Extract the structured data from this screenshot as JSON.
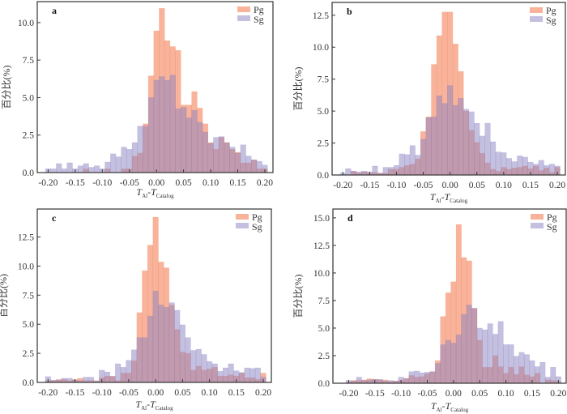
{
  "colors": {
    "pg": "#f4845c",
    "sg": "#8a82c2",
    "axis": "#333333"
  },
  "chart_data": [
    {
      "type": "bar",
      "panel_label": "a",
      "xlabel": "T_Al - T_Catalog",
      "xlabel_parts": {
        "t1": "T",
        "s1": "Al",
        "dash": "-",
        "t2": "T",
        "s2": "Catalog"
      },
      "ylabel": "百分比(%)",
      "xlim": [
        -0.22,
        0.215
      ],
      "ylim": [
        0,
        11.4
      ],
      "xticks": [
        -0.2,
        -0.15,
        -0.1,
        -0.05,
        0.0,
        0.05,
        0.1,
        0.15,
        0.2
      ],
      "xtick_labels": [
        "-0.20",
        "-0.15",
        "-0.10",
        "-0.05",
        "0.00",
        "0.05",
        "0.10",
        "0.15",
        "0.20"
      ],
      "yticks": [
        0,
        2.5,
        5.0,
        7.5,
        10.0
      ],
      "ytick_labels": [
        "0.0",
        "2.5",
        "5.0",
        "7.5",
        "10.0"
      ],
      "legend": {
        "position": "top-right",
        "entries": [
          "Pg",
          "Sg"
        ]
      },
      "bin_width": 0.01,
      "x": [
        -0.2,
        -0.19,
        -0.18,
        -0.17,
        -0.16,
        -0.15,
        -0.14,
        -0.13,
        -0.12,
        -0.11,
        -0.1,
        -0.09,
        -0.08,
        -0.07,
        -0.06,
        -0.05,
        -0.04,
        -0.03,
        -0.02,
        -0.01,
        0.0,
        0.01,
        0.02,
        0.03,
        0.04,
        0.05,
        0.06,
        0.07,
        0.08,
        0.09,
        0.1,
        0.11,
        0.12,
        0.13,
        0.14,
        0.15,
        0.16,
        0.17,
        0.18,
        0.19,
        0.2
      ],
      "series": [
        {
          "name": "Pg",
          "values": [
            0,
            0,
            0,
            0,
            0,
            0,
            0,
            0.25,
            0,
            0,
            0,
            0.25,
            0,
            0,
            0.25,
            0.25,
            1.1,
            1.3,
            3.25,
            6.45,
            9.45,
            10.95,
            8.8,
            8.4,
            8.15,
            4.5,
            4.5,
            5.4,
            4.3,
            3.25,
            2.0,
            1.55,
            2.35,
            2.0,
            1.55,
            1.35,
            0.65,
            0.65,
            0.85,
            0.25,
            0.25
          ]
        },
        {
          "name": "Sg",
          "values": [
            0.25,
            0.25,
            0.6,
            0.25,
            0.65,
            0.25,
            0.45,
            0.6,
            0.35,
            0.45,
            0.25,
            0.7,
            1.25,
            1.05,
            1.7,
            1.55,
            2.0,
            3.1,
            3.1,
            5.0,
            6.15,
            6.4,
            6.15,
            6.5,
            4.25,
            4.35,
            3.65,
            4.15,
            3.35,
            2.7,
            1.95,
            2.35,
            2.4,
            2.0,
            1.7,
            1.3,
            1.85,
            1.1,
            0.85,
            0.75,
            0.5
          ]
        }
      ]
    },
    {
      "type": "bar",
      "panel_label": "b",
      "xlabel": "T_Al - T_Catalog",
      "xlabel_parts": {
        "t1": "T",
        "s1": "Al",
        "dash": "-",
        "t2": "T",
        "s2": "Catalog"
      },
      "ylabel": "百分比(%)",
      "xlim": [
        -0.22,
        0.215
      ],
      "ylim": [
        0,
        13.5
      ],
      "xticks": [
        -0.2,
        -0.15,
        -0.1,
        -0.05,
        0.0,
        0.05,
        0.1,
        0.15,
        0.2
      ],
      "xtick_labels": [
        "-0.20",
        "-0.15",
        "-0.10",
        "-0.05",
        "0.00",
        "0.05",
        "0.10",
        "0.15",
        "0.20"
      ],
      "yticks": [
        0,
        2.5,
        5.0,
        7.5,
        10.0,
        12.5
      ],
      "ytick_labels": [
        "0.0",
        "2.5",
        "5.0",
        "7.5",
        "10.0",
        "12.5"
      ],
      "legend": {
        "position": "top-right",
        "entries": [
          "Pg",
          "Sg"
        ]
      },
      "bin_width": 0.01,
      "x": [
        -0.2,
        -0.19,
        -0.18,
        -0.17,
        -0.16,
        -0.15,
        -0.14,
        -0.13,
        -0.12,
        -0.11,
        -0.1,
        -0.09,
        -0.08,
        -0.07,
        -0.06,
        -0.05,
        -0.04,
        -0.03,
        -0.02,
        -0.01,
        0.0,
        0.01,
        0.02,
        0.03,
        0.04,
        0.05,
        0.06,
        0.07,
        0.08,
        0.09,
        0.1,
        0.11,
        0.12,
        0.13,
        0.14,
        0.15,
        0.16,
        0.17,
        0.18,
        0.19,
        0.2
      ],
      "series": [
        {
          "name": "Pg",
          "values": [
            0,
            0,
            0.3,
            0.15,
            0.25,
            0.15,
            0.2,
            0.15,
            0.15,
            0.45,
            0.45,
            0.6,
            0.75,
            0.85,
            1.25,
            3.4,
            4.55,
            8.65,
            10.9,
            12.75,
            12.75,
            10.25,
            8.1,
            5.0,
            3.5,
            2.55,
            1.7,
            0.95,
            0.45,
            0.3,
            0.6,
            0.45,
            0.55,
            0.6,
            0.7,
            0.5,
            0.7,
            0.35,
            0.55,
            0.2,
            0.6
          ]
        },
        {
          "name": "Sg",
          "values": [
            0.15,
            0.5,
            0.3,
            0.25,
            0.3,
            0.25,
            0.7,
            0.15,
            0.6,
            0.6,
            0.75,
            1.65,
            1.6,
            2.3,
            1.55,
            2.8,
            4.5,
            4.55,
            6.2,
            5.6,
            7.0,
            5.45,
            6.0,
            5.15,
            4.95,
            4.05,
            3.05,
            4.05,
            2.6,
            1.8,
            1.75,
            1.3,
            1.05,
            1.5,
            1.4,
            1.0,
            0.85,
            1.15,
            0.75,
            0.85,
            0.7
          ]
        }
      ]
    },
    {
      "type": "bar",
      "panel_label": "c",
      "xlabel": "T_Al - T_Catalog",
      "xlabel_parts": {
        "t1": "T",
        "s1": "Al",
        "dash": "-",
        "t2": "T",
        "s2": "Catalog"
      },
      "ylabel": "百分比(%)",
      "xlim": [
        -0.22,
        0.215
      ],
      "ylim": [
        0,
        14.9
      ],
      "xticks": [
        -0.2,
        -0.15,
        -0.1,
        -0.05,
        0.0,
        0.05,
        0.1,
        0.15,
        0.2
      ],
      "xtick_labels": [
        "-0.20",
        "-0.15",
        "-0.10",
        "-0.05",
        "0.00",
        "0.05",
        "0.10",
        "0.15",
        "0.20"
      ],
      "yticks": [
        0,
        2.5,
        5.0,
        7.5,
        10.0,
        12.5
      ],
      "ytick_labels": [
        "0.0",
        "2.5",
        "5.0",
        "7.5",
        "10.0",
        "12.5"
      ],
      "legend": {
        "position": "top-right",
        "entries": [
          "Pg",
          "Sg"
        ]
      },
      "bin_width": 0.01,
      "x": [
        -0.2,
        -0.19,
        -0.18,
        -0.17,
        -0.16,
        -0.15,
        -0.14,
        -0.13,
        -0.12,
        -0.11,
        -0.1,
        -0.09,
        -0.08,
        -0.07,
        -0.06,
        -0.05,
        -0.04,
        -0.03,
        -0.02,
        -0.01,
        0.0,
        0.01,
        0.02,
        0.03,
        0.04,
        0.05,
        0.06,
        0.07,
        0.08,
        0.09,
        0.1,
        0.11,
        0.12,
        0.13,
        0.14,
        0.15,
        0.16,
        0.17,
        0.18,
        0.19,
        0.2
      ],
      "series": [
        {
          "name": "Pg",
          "values": [
            0.15,
            0.15,
            0.25,
            0.25,
            0.15,
            0.25,
            0.35,
            0.15,
            0.15,
            0.1,
            0.4,
            0.55,
            0.55,
            0.15,
            0.8,
            0.8,
            1.85,
            6.0,
            9.6,
            11.8,
            14.2,
            10.35,
            9.85,
            6.65,
            4.55,
            2.6,
            2.5,
            1.05,
            1.4,
            1.05,
            1.15,
            1.3,
            0.55,
            0.55,
            0.65,
            0.55,
            0.8,
            0.4,
            0.4,
            0.25,
            0.8
          ]
        },
        {
          "name": "Sg",
          "values": [
            0.5,
            0.2,
            0.2,
            0.35,
            0.35,
            0.2,
            0.15,
            0.45,
            0.45,
            0.15,
            1.05,
            0.9,
            0.5,
            1.6,
            1.3,
            1.9,
            2.8,
            3.85,
            3.85,
            5.7,
            7.85,
            6.65,
            6.45,
            6.85,
            6.2,
            4.95,
            3.85,
            2.75,
            2.85,
            2.4,
            1.8,
            1.6,
            0.95,
            1.25,
            1.6,
            1.0,
            0.85,
            1.25,
            1.2,
            1.25,
            0.45
          ]
        }
      ]
    },
    {
      "type": "bar",
      "panel_label": "d",
      "xlabel": "T_Al - T_Catalog",
      "xlabel_parts": {
        "t1": "T",
        "s1": "Al",
        "dash": "-",
        "t2": "T",
        "s2": "Catalog"
      },
      "ylabel": "百分比(%)",
      "xlim": [
        -0.23,
        0.215
      ],
      "ylim": [
        0,
        15.8
      ],
      "xticks": [
        -0.2,
        -0.15,
        -0.1,
        -0.05,
        0.0,
        0.05,
        0.1,
        0.15,
        0.2
      ],
      "xtick_labels": [
        "-0.20",
        "-0.15",
        "-0.10",
        "-0.05",
        "0.00",
        "0.05",
        "0.10",
        "0.15",
        "0.20"
      ],
      "yticks": [
        0,
        2.5,
        5.0,
        7.5,
        10.0,
        12.5,
        15.0
      ],
      "ytick_labels": [
        "0.0",
        "2.5",
        "5.0",
        "7.5",
        "10.0",
        "12.5",
        "15.0"
      ],
      "legend": {
        "position": "top-right",
        "entries": [
          "Pg",
          "Sg"
        ]
      },
      "bin_width": 0.01,
      "x": [
        -0.2,
        -0.19,
        -0.18,
        -0.17,
        -0.16,
        -0.15,
        -0.14,
        -0.13,
        -0.12,
        -0.11,
        -0.1,
        -0.09,
        -0.08,
        -0.07,
        -0.06,
        -0.05,
        -0.04,
        -0.03,
        -0.02,
        -0.01,
        0.0,
        0.01,
        0.02,
        0.03,
        0.04,
        0.05,
        0.06,
        0.07,
        0.08,
        0.09,
        0.1,
        0.11,
        0.12,
        0.13,
        0.14,
        0.15,
        0.16,
        0.17,
        0.18,
        0.19,
        0.2
      ],
      "series": [
        {
          "name": "Pg",
          "values": [
            0.1,
            0.25,
            0.25,
            0.3,
            0.4,
            0.35,
            0.3,
            0.3,
            0.15,
            0.2,
            0.25,
            0.45,
            0.7,
            0.55,
            0.6,
            0.85,
            1.05,
            2.05,
            6.05,
            8.2,
            9.2,
            14.4,
            11.4,
            11.1,
            6.8,
            3.9,
            1.45,
            1.45,
            2.5,
            1.5,
            0.9,
            1.45,
            0.8,
            1.5,
            0.75,
            0.6,
            0.9,
            0.0,
            0.3,
            0.25,
            0.15
          ]
        },
        {
          "name": "Sg",
          "values": [
            0.25,
            0.2,
            0.55,
            0.25,
            0.3,
            0.35,
            0.35,
            0.2,
            0.25,
            0.2,
            0.55,
            0.4,
            1.05,
            1.1,
            0.95,
            1.0,
            1.05,
            1.8,
            3.5,
            3.9,
            3.65,
            4.4,
            6.25,
            7.1,
            6.8,
            5.0,
            4.85,
            5.4,
            4.45,
            5.6,
            3.5,
            3.5,
            2.45,
            2.8,
            2.6,
            2.05,
            1.5,
            1.9,
            0.55,
            1.45,
            0.6
          ]
        }
      ]
    }
  ]
}
